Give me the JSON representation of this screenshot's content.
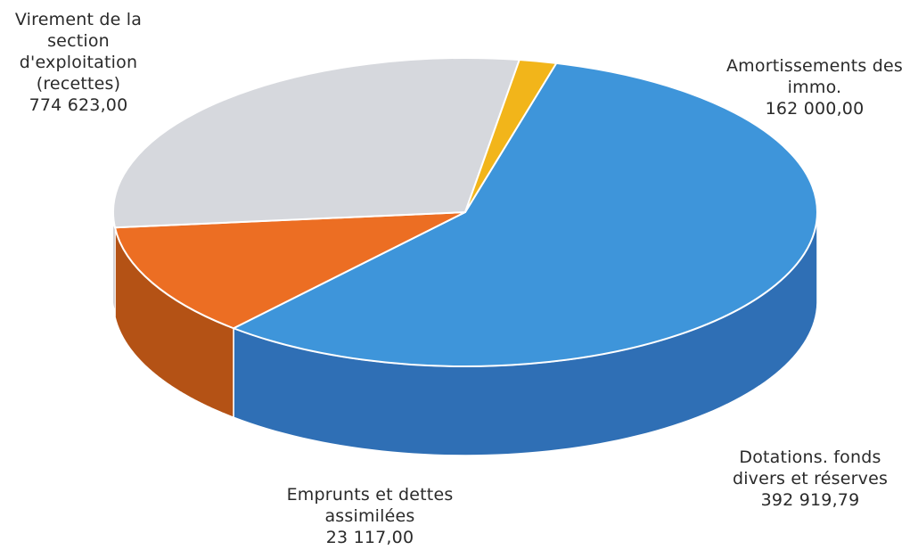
{
  "chart_data": {
    "type": "pie",
    "style": "3d",
    "slices": [
      {
        "label": "Virement de la section d'exploitation (recettes)",
        "label_lines": [
          "Virement de la",
          "section",
          "d'exploitation",
          "(recettes)"
        ],
        "value": 774623.0,
        "value_text": "774 623,00",
        "color": "#3e95da",
        "side_color": "#2f6fb5"
      },
      {
        "label": "Amortissements des immo.",
        "label_lines": [
          "Amortissements des",
          "immo."
        ],
        "value": 162000.0,
        "value_text": "162 000,00",
        "color": "#ec6e23",
        "side_color": "#b45215"
      },
      {
        "label": "Dotations. fonds divers et réserves",
        "label_lines": [
          "Dotations. fonds",
          "divers et réserves"
        ],
        "value": 392919.79,
        "value_text": "392 919,79",
        "color": "#d6d8dd",
        "side_color": "#4a4250"
      },
      {
        "label": "Emprunts et dettes assimilées",
        "label_lines": [
          "Emprunts et dettes",
          "assimilées"
        ],
        "value": 23117.0,
        "value_text": "23 117,00",
        "color": "#f2b51a",
        "side_color": "#c27f10"
      }
    ]
  }
}
